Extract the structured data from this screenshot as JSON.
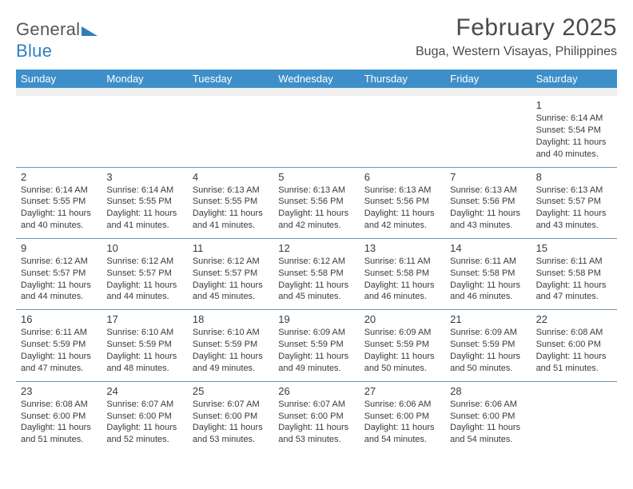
{
  "logo": {
    "text_gray": "General",
    "text_blue": "Blue",
    "shape_color": "#2f7fbf"
  },
  "header": {
    "month_title": "February 2025",
    "location": "Buga, Western Visayas, Philippines"
  },
  "colors": {
    "header_bg": "#3e8fc9",
    "row_divider": "#6f94b0",
    "blank_row": "#efefef",
    "page_bg": "#ffffff"
  },
  "weekdays": [
    "Sunday",
    "Monday",
    "Tuesday",
    "Wednesday",
    "Thursday",
    "Friday",
    "Saturday"
  ],
  "weeks": [
    [
      null,
      null,
      null,
      null,
      null,
      null,
      {
        "n": "1",
        "sunrise": "Sunrise: 6:14 AM",
        "sunset": "Sunset: 5:54 PM",
        "daylight": "Daylight: 11 hours and 40 minutes."
      }
    ],
    [
      {
        "n": "2",
        "sunrise": "Sunrise: 6:14 AM",
        "sunset": "Sunset: 5:55 PM",
        "daylight": "Daylight: 11 hours and 40 minutes."
      },
      {
        "n": "3",
        "sunrise": "Sunrise: 6:14 AM",
        "sunset": "Sunset: 5:55 PM",
        "daylight": "Daylight: 11 hours and 41 minutes."
      },
      {
        "n": "4",
        "sunrise": "Sunrise: 6:13 AM",
        "sunset": "Sunset: 5:55 PM",
        "daylight": "Daylight: 11 hours and 41 minutes."
      },
      {
        "n": "5",
        "sunrise": "Sunrise: 6:13 AM",
        "sunset": "Sunset: 5:56 PM",
        "daylight": "Daylight: 11 hours and 42 minutes."
      },
      {
        "n": "6",
        "sunrise": "Sunrise: 6:13 AM",
        "sunset": "Sunset: 5:56 PM",
        "daylight": "Daylight: 11 hours and 42 minutes."
      },
      {
        "n": "7",
        "sunrise": "Sunrise: 6:13 AM",
        "sunset": "Sunset: 5:56 PM",
        "daylight": "Daylight: 11 hours and 43 minutes."
      },
      {
        "n": "8",
        "sunrise": "Sunrise: 6:13 AM",
        "sunset": "Sunset: 5:57 PM",
        "daylight": "Daylight: 11 hours and 43 minutes."
      }
    ],
    [
      {
        "n": "9",
        "sunrise": "Sunrise: 6:12 AM",
        "sunset": "Sunset: 5:57 PM",
        "daylight": "Daylight: 11 hours and 44 minutes."
      },
      {
        "n": "10",
        "sunrise": "Sunrise: 6:12 AM",
        "sunset": "Sunset: 5:57 PM",
        "daylight": "Daylight: 11 hours and 44 minutes."
      },
      {
        "n": "11",
        "sunrise": "Sunrise: 6:12 AM",
        "sunset": "Sunset: 5:57 PM",
        "daylight": "Daylight: 11 hours and 45 minutes."
      },
      {
        "n": "12",
        "sunrise": "Sunrise: 6:12 AM",
        "sunset": "Sunset: 5:58 PM",
        "daylight": "Daylight: 11 hours and 45 minutes."
      },
      {
        "n": "13",
        "sunrise": "Sunrise: 6:11 AM",
        "sunset": "Sunset: 5:58 PM",
        "daylight": "Daylight: 11 hours and 46 minutes."
      },
      {
        "n": "14",
        "sunrise": "Sunrise: 6:11 AM",
        "sunset": "Sunset: 5:58 PM",
        "daylight": "Daylight: 11 hours and 46 minutes."
      },
      {
        "n": "15",
        "sunrise": "Sunrise: 6:11 AM",
        "sunset": "Sunset: 5:58 PM",
        "daylight": "Daylight: 11 hours and 47 minutes."
      }
    ],
    [
      {
        "n": "16",
        "sunrise": "Sunrise: 6:11 AM",
        "sunset": "Sunset: 5:59 PM",
        "daylight": "Daylight: 11 hours and 47 minutes."
      },
      {
        "n": "17",
        "sunrise": "Sunrise: 6:10 AM",
        "sunset": "Sunset: 5:59 PM",
        "daylight": "Daylight: 11 hours and 48 minutes."
      },
      {
        "n": "18",
        "sunrise": "Sunrise: 6:10 AM",
        "sunset": "Sunset: 5:59 PM",
        "daylight": "Daylight: 11 hours and 49 minutes."
      },
      {
        "n": "19",
        "sunrise": "Sunrise: 6:09 AM",
        "sunset": "Sunset: 5:59 PM",
        "daylight": "Daylight: 11 hours and 49 minutes."
      },
      {
        "n": "20",
        "sunrise": "Sunrise: 6:09 AM",
        "sunset": "Sunset: 5:59 PM",
        "daylight": "Daylight: 11 hours and 50 minutes."
      },
      {
        "n": "21",
        "sunrise": "Sunrise: 6:09 AM",
        "sunset": "Sunset: 5:59 PM",
        "daylight": "Daylight: 11 hours and 50 minutes."
      },
      {
        "n": "22",
        "sunrise": "Sunrise: 6:08 AM",
        "sunset": "Sunset: 6:00 PM",
        "daylight": "Daylight: 11 hours and 51 minutes."
      }
    ],
    [
      {
        "n": "23",
        "sunrise": "Sunrise: 6:08 AM",
        "sunset": "Sunset: 6:00 PM",
        "daylight": "Daylight: 11 hours and 51 minutes."
      },
      {
        "n": "24",
        "sunrise": "Sunrise: 6:07 AM",
        "sunset": "Sunset: 6:00 PM",
        "daylight": "Daylight: 11 hours and 52 minutes."
      },
      {
        "n": "25",
        "sunrise": "Sunrise: 6:07 AM",
        "sunset": "Sunset: 6:00 PM",
        "daylight": "Daylight: 11 hours and 53 minutes."
      },
      {
        "n": "26",
        "sunrise": "Sunrise: 6:07 AM",
        "sunset": "Sunset: 6:00 PM",
        "daylight": "Daylight: 11 hours and 53 minutes."
      },
      {
        "n": "27",
        "sunrise": "Sunrise: 6:06 AM",
        "sunset": "Sunset: 6:00 PM",
        "daylight": "Daylight: 11 hours and 54 minutes."
      },
      {
        "n": "28",
        "sunrise": "Sunrise: 6:06 AM",
        "sunset": "Sunset: 6:00 PM",
        "daylight": "Daylight: 11 hours and 54 minutes."
      },
      null
    ]
  ]
}
